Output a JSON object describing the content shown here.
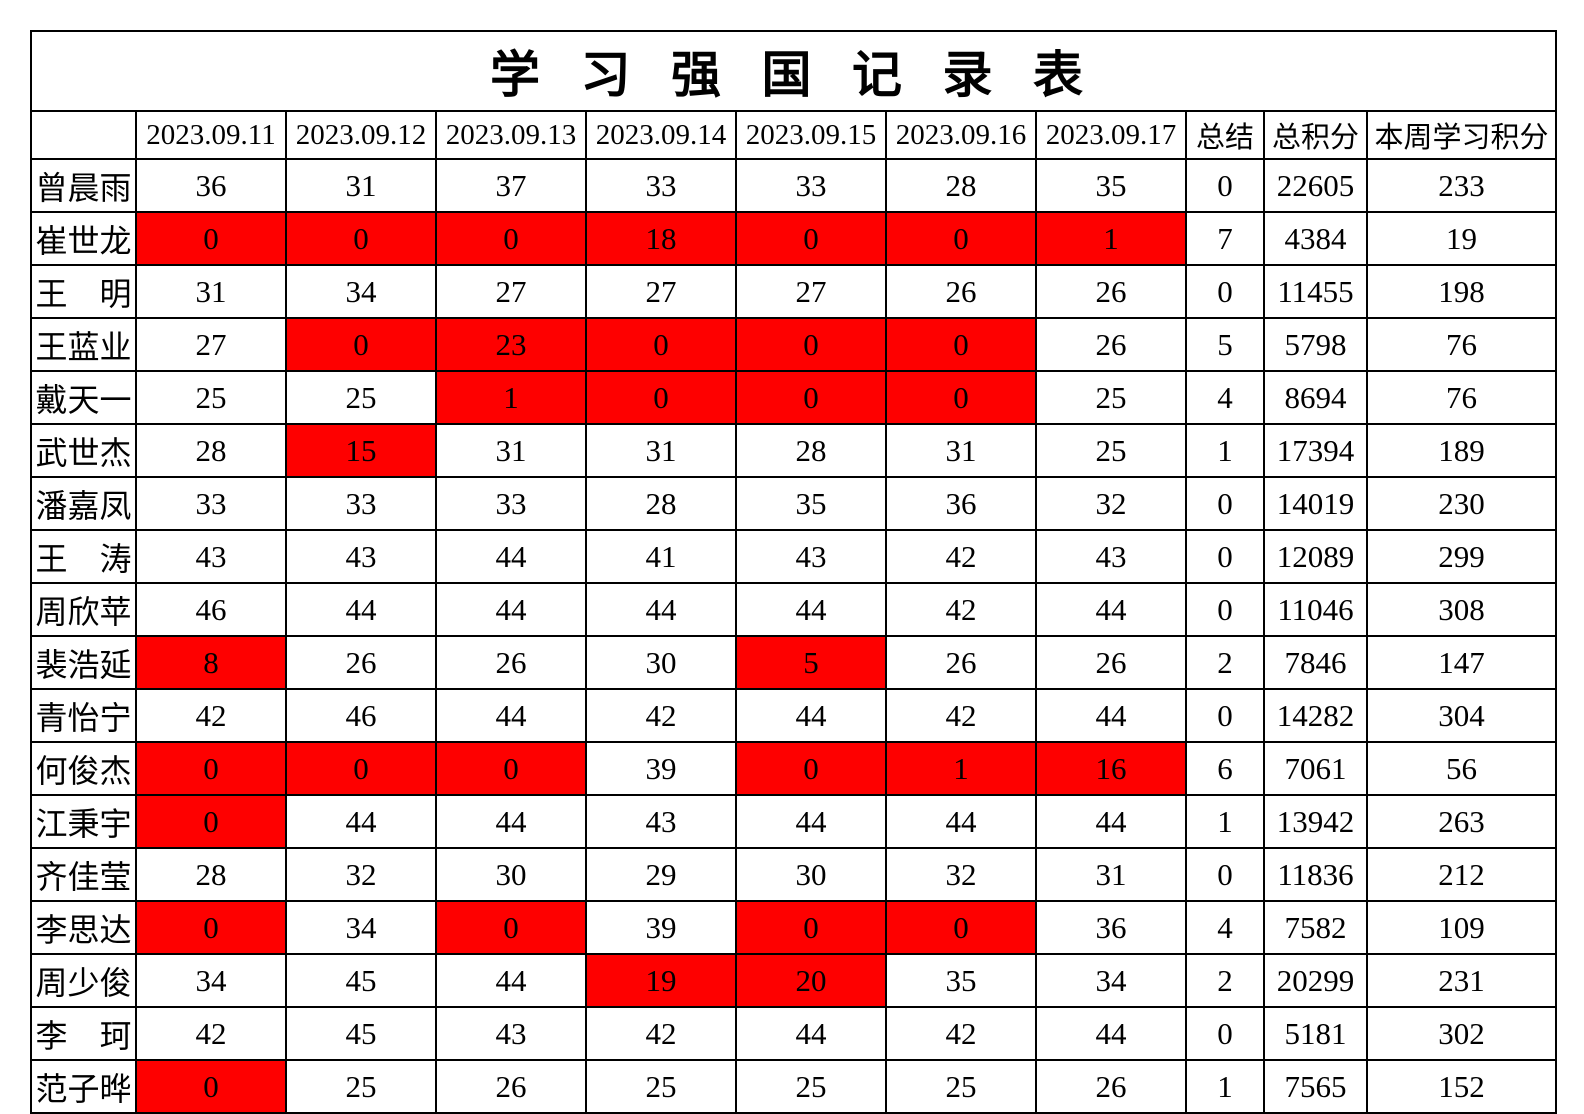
{
  "title": "学 习 强 国 记 录 表",
  "colors": {
    "highlight_background": "#fe0000",
    "dim_value_on_highlight": "#c00000",
    "accent_text": "#f00000",
    "default_text": "#000000",
    "grid_border": "#000000"
  },
  "columns": [
    {
      "label": "",
      "red": false
    },
    {
      "label": "2023.09.11",
      "red": false
    },
    {
      "label": "2023.09.12",
      "red": false
    },
    {
      "label": "2023.09.13",
      "red": false
    },
    {
      "label": "2023.09.14",
      "red": false
    },
    {
      "label": "2023.09.15",
      "red": false
    },
    {
      "label": "2023.09.16",
      "red": false
    },
    {
      "label": "2023.09.17",
      "red": false
    },
    {
      "label": "总结",
      "red": true
    },
    {
      "label": "总积分",
      "red": true
    },
    {
      "label": "本周学习积分",
      "red": true
    }
  ],
  "cell_style_legend": {
    "n": "normal",
    "r": "red background black value",
    "d": "red background dark-red value"
  },
  "rows": [
    {
      "name": "曾晨雨",
      "days": [
        [
          "36",
          "n"
        ],
        [
          "31",
          "n"
        ],
        [
          "37",
          "n"
        ],
        [
          "33",
          "n"
        ],
        [
          "33",
          "n"
        ],
        [
          "28",
          "n"
        ],
        [
          "35",
          "n"
        ]
      ],
      "summary": "0",
      "total": "22605",
      "week": "233"
    },
    {
      "name": "崔世龙",
      "days": [
        [
          "0",
          "r"
        ],
        [
          "0",
          "r"
        ],
        [
          "0",
          "r"
        ],
        [
          "18",
          "r"
        ],
        [
          "0",
          "r"
        ],
        [
          "0",
          "r"
        ],
        [
          "1",
          "r"
        ]
      ],
      "summary": "7",
      "total": "4384",
      "week": "19"
    },
    {
      "name": "王　明",
      "days": [
        [
          "31",
          "n"
        ],
        [
          "34",
          "n"
        ],
        [
          "27",
          "n"
        ],
        [
          "27",
          "n"
        ],
        [
          "27",
          "n"
        ],
        [
          "26",
          "n"
        ],
        [
          "26",
          "n"
        ]
      ],
      "summary": "0",
      "total": "11455",
      "week": "198"
    },
    {
      "name": "王蓝业",
      "days": [
        [
          "27",
          "n"
        ],
        [
          "0",
          "d"
        ],
        [
          "23",
          "d"
        ],
        [
          "0",
          "d"
        ],
        [
          "0",
          "d"
        ],
        [
          "0",
          "d"
        ],
        [
          "26",
          "n"
        ]
      ],
      "summary": "5",
      "total": "5798",
      "week": "76"
    },
    {
      "name": "戴天一",
      "days": [
        [
          "25",
          "n"
        ],
        [
          "25",
          "n"
        ],
        [
          "1",
          "d"
        ],
        [
          "0",
          "d"
        ],
        [
          "0",
          "d"
        ],
        [
          "0",
          "d"
        ],
        [
          "25",
          "n"
        ]
      ],
      "summary": "4",
      "total": "8694",
      "week": "76"
    },
    {
      "name": "武世杰",
      "days": [
        [
          "28",
          "n"
        ],
        [
          "15",
          "d"
        ],
        [
          "31",
          "n"
        ],
        [
          "31",
          "n"
        ],
        [
          "28",
          "n"
        ],
        [
          "31",
          "n"
        ],
        [
          "25",
          "n"
        ]
      ],
      "summary": "1",
      "total": "17394",
      "week": "189"
    },
    {
      "name": "潘嘉凤",
      "days": [
        [
          "33",
          "n"
        ],
        [
          "33",
          "n"
        ],
        [
          "33",
          "n"
        ],
        [
          "28",
          "n"
        ],
        [
          "35",
          "n"
        ],
        [
          "36",
          "n"
        ],
        [
          "32",
          "n"
        ]
      ],
      "summary": "0",
      "total": "14019",
      "week": "230"
    },
    {
      "name": "王　涛",
      "days": [
        [
          "43",
          "n"
        ],
        [
          "43",
          "n"
        ],
        [
          "44",
          "n"
        ],
        [
          "41",
          "n"
        ],
        [
          "43",
          "n"
        ],
        [
          "42",
          "n"
        ],
        [
          "43",
          "n"
        ]
      ],
      "summary": "0",
      "total": "12089",
      "week": "299"
    },
    {
      "name": "周欣苹",
      "days": [
        [
          "46",
          "n"
        ],
        [
          "44",
          "n"
        ],
        [
          "44",
          "n"
        ],
        [
          "44",
          "n"
        ],
        [
          "44",
          "n"
        ],
        [
          "42",
          "n"
        ],
        [
          "44",
          "n"
        ]
      ],
      "summary": "0",
      "total": "11046",
      "week": "308"
    },
    {
      "name": "裴浩延",
      "days": [
        [
          "8",
          "r"
        ],
        [
          "26",
          "n"
        ],
        [
          "26",
          "n"
        ],
        [
          "30",
          "n"
        ],
        [
          "5",
          "r"
        ],
        [
          "26",
          "n"
        ],
        [
          "26",
          "n"
        ]
      ],
      "summary": "2",
      "total": "7846",
      "week": "147"
    },
    {
      "name": "青怡宁",
      "days": [
        [
          "42",
          "n"
        ],
        [
          "46",
          "n"
        ],
        [
          "44",
          "n"
        ],
        [
          "42",
          "n"
        ],
        [
          "44",
          "n"
        ],
        [
          "42",
          "n"
        ],
        [
          "44",
          "n"
        ]
      ],
      "summary": "0",
      "total": "14282",
      "week": "304"
    },
    {
      "name": "何俊杰",
      "days": [
        [
          "0",
          "r"
        ],
        [
          "0",
          "r"
        ],
        [
          "0",
          "r"
        ],
        [
          "39",
          "n"
        ],
        [
          "0",
          "r"
        ],
        [
          "1",
          "r"
        ],
        [
          "16",
          "r"
        ]
      ],
      "summary": "6",
      "total": "7061",
      "week": "56"
    },
    {
      "name": "江秉宇",
      "days": [
        [
          "0",
          "d"
        ],
        [
          "44",
          "n"
        ],
        [
          "44",
          "n"
        ],
        [
          "43",
          "n"
        ],
        [
          "44",
          "n"
        ],
        [
          "44",
          "n"
        ],
        [
          "44",
          "n"
        ]
      ],
      "summary": "1",
      "total": "13942",
      "week": "263"
    },
    {
      "name": "齐佳莹",
      "days": [
        [
          "28",
          "n"
        ],
        [
          "32",
          "n"
        ],
        [
          "30",
          "n"
        ],
        [
          "29",
          "n"
        ],
        [
          "30",
          "n"
        ],
        [
          "32",
          "n"
        ],
        [
          "31",
          "n"
        ]
      ],
      "summary": "0",
      "total": "11836",
      "week": "212"
    },
    {
      "name": "李思达",
      "days": [
        [
          "0",
          "r"
        ],
        [
          "34",
          "n"
        ],
        [
          "0",
          "r"
        ],
        [
          "39",
          "n"
        ],
        [
          "0",
          "r"
        ],
        [
          "0",
          "r"
        ],
        [
          "36",
          "n"
        ]
      ],
      "summary": "4",
      "total": "7582",
      "week": "109"
    },
    {
      "name": "周少俊",
      "days": [
        [
          "34",
          "n"
        ],
        [
          "45",
          "n"
        ],
        [
          "44",
          "n"
        ],
        [
          "19",
          "r"
        ],
        [
          "20",
          "r"
        ],
        [
          "35",
          "n"
        ],
        [
          "34",
          "n"
        ]
      ],
      "summary": "2",
      "total": "20299",
      "week": "231"
    },
    {
      "name": "李　珂",
      "days": [
        [
          "42",
          "n"
        ],
        [
          "45",
          "n"
        ],
        [
          "43",
          "n"
        ],
        [
          "42",
          "n"
        ],
        [
          "44",
          "n"
        ],
        [
          "42",
          "n"
        ],
        [
          "44",
          "n"
        ]
      ],
      "summary": "0",
      "total": "5181",
      "week": "302"
    },
    {
      "name": "范子晔",
      "days": [
        [
          "0",
          "r"
        ],
        [
          "25",
          "n"
        ],
        [
          "26",
          "n"
        ],
        [
          "25",
          "n"
        ],
        [
          "25",
          "n"
        ],
        [
          "25",
          "n"
        ],
        [
          "26",
          "n"
        ]
      ],
      "summary": "1",
      "total": "7565",
      "week": "152"
    }
  ]
}
